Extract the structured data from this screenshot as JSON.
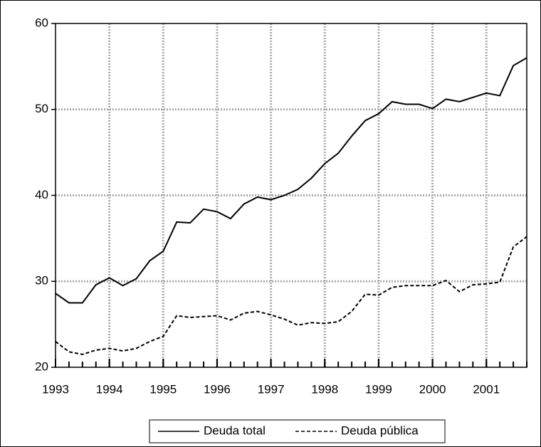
{
  "chart_data": {
    "type": "line",
    "x": [
      1993,
      1993.25,
      1993.5,
      1993.75,
      1994,
      1994.25,
      1994.5,
      1994.75,
      1995,
      1995.25,
      1995.5,
      1995.75,
      1996,
      1996.25,
      1996.5,
      1996.75,
      1997,
      1997.25,
      1997.5,
      1997.75,
      1998,
      1998.25,
      1998.5,
      1998.75,
      1999,
      1999.25,
      1999.5,
      1999.75,
      2000,
      2000.25,
      2000.5,
      2000.75,
      2001,
      2001.25,
      2001.5,
      2001.75
    ],
    "series": [
      {
        "name": "Deuda total",
        "color": "#000000",
        "dash": "solid",
        "values": [
          28.6,
          27.5,
          27.5,
          29.6,
          30.4,
          29.5,
          30.3,
          32.4,
          33.5,
          36.9,
          36.8,
          38.4,
          38.1,
          37.3,
          39.0,
          39.8,
          39.5,
          40.0,
          40.7,
          42.0,
          43.7,
          44.9,
          46.9,
          48.7,
          49.5,
          50.9,
          50.6,
          50.6,
          50.1,
          51.2,
          50.9,
          51.4,
          51.9,
          51.6,
          55.1,
          56.0
        ]
      },
      {
        "name": "Deuda pública",
        "color": "#000000",
        "dash": "dashed",
        "values": [
          23.0,
          21.8,
          21.5,
          22.0,
          22.2,
          21.9,
          22.2,
          23.0,
          23.6,
          26.0,
          25.8,
          25.9,
          26.0,
          25.5,
          26.3,
          26.5,
          26.1,
          25.6,
          24.9,
          25.2,
          25.1,
          25.3,
          26.5,
          28.5,
          28.4,
          29.3,
          29.5,
          29.5,
          29.5,
          30.1,
          28.8,
          29.6,
          29.7,
          29.9,
          34.0,
          35.2
        ]
      }
    ],
    "xlim": [
      1993,
      2001.75
    ],
    "xticks": [
      1993,
      1994,
      1995,
      1996,
      1997,
      1998,
      1999,
      2000,
      2001
    ],
    "ylim": [
      20,
      60
    ],
    "yticks": [
      20,
      30,
      40,
      50,
      60
    ],
    "grid": true,
    "legend": "bottom"
  }
}
